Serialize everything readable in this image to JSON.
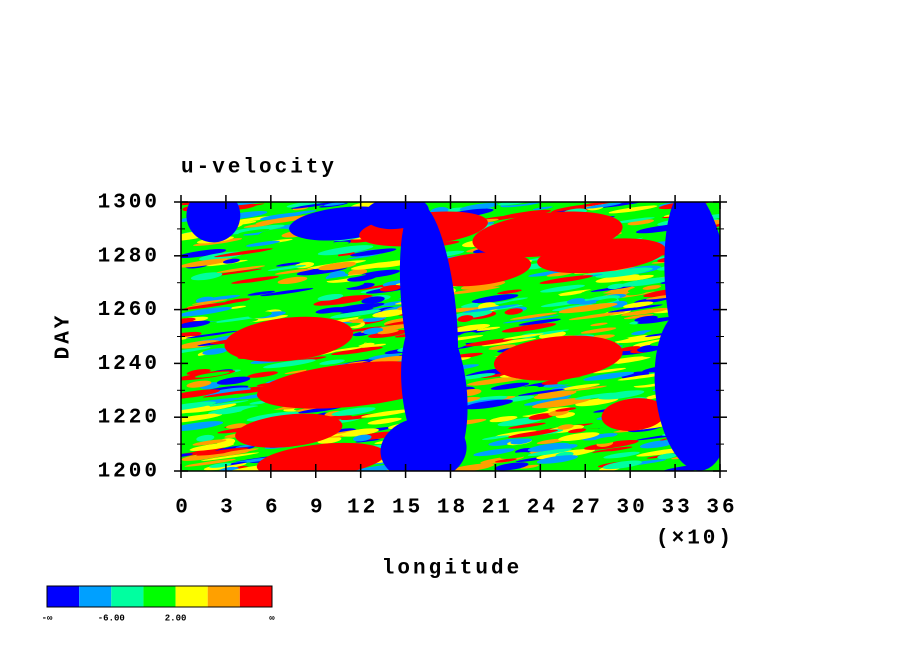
{
  "chart_data": {
    "type": "contour",
    "title": "u-velocity",
    "x_label": "longitude",
    "x_scale_label": "(×10)",
    "y_label": "DAY",
    "xlim": [
      0,
      36
    ],
    "xticks": [
      0,
      3,
      6,
      9,
      12,
      15,
      18,
      21,
      24,
      27,
      30,
      33,
      36
    ],
    "ylim": [
      1200,
      1300
    ],
    "yticks": [
      1200,
      1220,
      1240,
      1260,
      1280,
      1300
    ],
    "colorbar": {
      "colors": [
        "#0000ff",
        "#00a0ff",
        "#00ffa0",
        "#00ff00",
        "#ffff00",
        "#ffa000",
        "#ff0000"
      ],
      "labels": [
        "-∞",
        null,
        "-6.00",
        null,
        "2.00",
        null,
        null,
        "∞"
      ]
    }
  }
}
